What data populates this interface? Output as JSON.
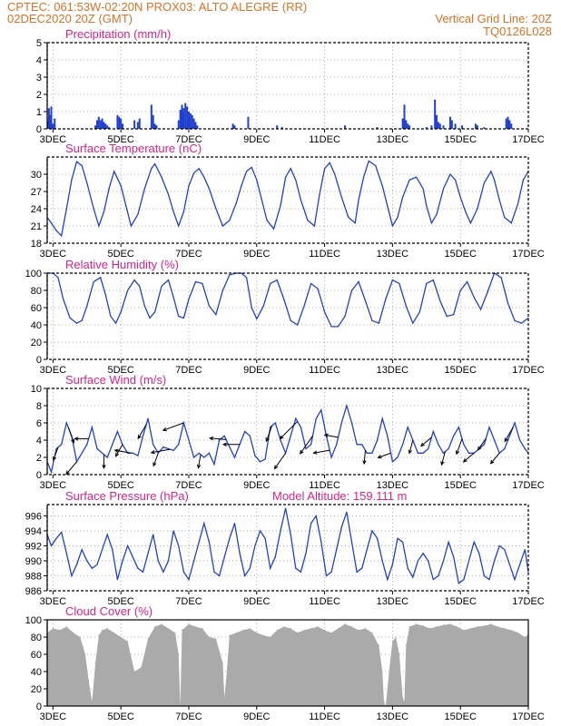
{
  "header": {
    "line1_left": "CPTEC:   061:53W-02:20N   PROX03: ALTO ALEGRE (RR)",
    "line2_left": "02DEC2020 20Z (GMT)",
    "line2_right": "Vertical Grid Line: 20Z",
    "line3_right": "TQ0126L028",
    "color": "#e07020"
  },
  "colors": {
    "title": "#e0208a",
    "line": "#2040d0",
    "bar": "#2040d0",
    "cloud": "#aaaaaa",
    "wind_arrow": "#000000"
  },
  "x_axis": {
    "range_days": [
      2.83,
      17.0
    ],
    "tick_labels": [
      "3DEC",
      "5DEC",
      "7DEC",
      "9DEC",
      "11DEC",
      "13DEC",
      "15DEC",
      "17DEC"
    ],
    "tick_days": [
      3,
      5,
      7,
      9,
      11,
      13,
      15,
      17
    ]
  },
  "chart_data": [
    {
      "type": "bar",
      "title": "Precipitation (mm/h)",
      "ylim": [
        0,
        5
      ],
      "yticks": [
        0,
        1,
        2,
        3,
        4,
        5
      ],
      "grid": true,
      "x": [
        2.85,
        2.88,
        2.92,
        2.95,
        3.0,
        3.05,
        4.25,
        4.3,
        4.35,
        4.4,
        4.45,
        4.5,
        4.55,
        4.6,
        4.65,
        4.9,
        4.95,
        5.0,
        5.05,
        5.4,
        5.5,
        5.55,
        5.9,
        5.95,
        6.0,
        6.05,
        6.7,
        6.75,
        6.8,
        6.85,
        6.9,
        6.95,
        7.0,
        7.05,
        7.1,
        7.15,
        7.2,
        7.25,
        8.3,
        8.35,
        8.75,
        9.6,
        9.75,
        11.6,
        12.55,
        13.3,
        13.35,
        13.4,
        13.45,
        13.5,
        14.0,
        14.15,
        14.25,
        14.3,
        14.35,
        14.4,
        14.5,
        14.7,
        14.75,
        14.85,
        15.05,
        15.45,
        15.5,
        15.7,
        16.35,
        16.4,
        16.45,
        16.5
      ],
      "values": [
        0.5,
        1.2,
        0.8,
        1.3,
        0.3,
        0.6,
        0.2,
        0.5,
        0.7,
        0.5,
        0.6,
        0.4,
        0.3,
        0.2,
        0.1,
        0.8,
        0.7,
        0.6,
        0.3,
        0.5,
        0.4,
        0.6,
        1.4,
        0.8,
        0.3,
        0.2,
        0.5,
        1.1,
        1.4,
        1.2,
        1.5,
        1.3,
        1.0,
        0.9,
        0.8,
        0.6,
        0.4,
        0.2,
        0.3,
        0.2,
        0.7,
        0.2,
        0.1,
        0.2,
        0.1,
        0.6,
        1.4,
        0.5,
        0.3,
        0.2,
        0.1,
        0.2,
        1.7,
        0.8,
        0.4,
        0.3,
        0.2,
        0.7,
        0.5,
        0.3,
        0.2,
        0.3,
        0.2,
        0.1,
        0.6,
        0.7,
        0.5,
        0.3
      ]
    },
    {
      "type": "line",
      "title": "Surface Temperature (nC)",
      "ylim": [
        18,
        33
      ],
      "yticks": [
        18,
        21,
        24,
        27,
        30
      ],
      "grid": true,
      "x": [
        2.83,
        2.95,
        3.1,
        3.25,
        3.4,
        3.55,
        3.7,
        3.85,
        4.0,
        4.2,
        4.35,
        4.5,
        4.65,
        4.8,
        5.0,
        5.15,
        5.3,
        5.5,
        5.7,
        5.9,
        6.0,
        6.2,
        6.4,
        6.55,
        6.7,
        6.85,
        7.0,
        7.15,
        7.3,
        7.45,
        7.6,
        7.8,
        8.0,
        8.2,
        8.4,
        8.55,
        8.7,
        8.85,
        9.0,
        9.15,
        9.3,
        9.5,
        9.7,
        9.85,
        10.0,
        10.15,
        10.3,
        10.5,
        10.7,
        10.85,
        11.0,
        11.15,
        11.3,
        11.5,
        11.7,
        11.9,
        12.0,
        12.15,
        12.3,
        12.5,
        12.7,
        12.85,
        13.0,
        13.15,
        13.3,
        13.5,
        13.7,
        13.9,
        14.0,
        14.15,
        14.3,
        14.5,
        14.7,
        14.85,
        15.0,
        15.15,
        15.3,
        15.5,
        15.7,
        15.9,
        16.0,
        16.15,
        16.3,
        16.5,
        16.7,
        16.85,
        17.0
      ],
      "values": [
        22.5,
        21.5,
        20.2,
        19.3,
        24.0,
        29.0,
        32.2,
        31.5,
        28.5,
        24.0,
        21.0,
        23.5,
        27.5,
        30.5,
        28.0,
        24.5,
        21.0,
        23.0,
        27.5,
        31.0,
        31.8,
        29.5,
        26.5,
        23.5,
        21.0,
        23.5,
        28.0,
        30.2,
        31.0,
        29.5,
        27.5,
        24.0,
        21.0,
        22.0,
        25.0,
        28.0,
        30.5,
        31.2,
        29.0,
        25.5,
        22.0,
        20.5,
        24.5,
        29.5,
        31.0,
        29.0,
        25.5,
        22.0,
        21.0,
        26.5,
        31.0,
        32.0,
        30.0,
        26.0,
        22.5,
        21.5,
        25.5,
        29.5,
        32.3,
        31.5,
        28.0,
        24.5,
        21.0,
        22.5,
        26.0,
        29.0,
        29.5,
        27.5,
        24.5,
        21.5,
        23.0,
        27.5,
        30.0,
        29.0,
        26.0,
        23.5,
        21.5,
        24.0,
        28.5,
        30.5,
        29.0,
        25.5,
        22.5,
        21.5,
        25.0,
        29.0,
        30.5
      ]
    },
    {
      "type": "line",
      "title": "Relative Humidity (%)",
      "ylim": [
        0,
        100
      ],
      "yticks": [
        0,
        20,
        40,
        60,
        80,
        100
      ],
      "grid": true,
      "x": [
        2.83,
        3.0,
        3.15,
        3.3,
        3.5,
        3.7,
        3.85,
        4.0,
        4.2,
        4.4,
        4.55,
        4.7,
        4.85,
        5.0,
        5.2,
        5.4,
        5.55,
        5.7,
        5.85,
        6.0,
        6.2,
        6.4,
        6.55,
        6.7,
        6.85,
        7.0,
        7.2,
        7.4,
        7.6,
        7.8,
        8.0,
        8.2,
        8.4,
        8.55,
        8.7,
        8.85,
        9.0,
        9.2,
        9.4,
        9.6,
        9.8,
        10.0,
        10.2,
        10.4,
        10.6,
        10.8,
        11.0,
        11.2,
        11.4,
        11.6,
        11.8,
        12.0,
        12.2,
        12.4,
        12.6,
        12.8,
        13.0,
        13.2,
        13.4,
        13.6,
        13.8,
        14.0,
        14.2,
        14.4,
        14.6,
        14.8,
        15.0,
        15.2,
        15.4,
        15.6,
        15.8,
        16.0,
        16.2,
        16.4,
        16.6,
        16.8,
        17.0
      ],
      "values": [
        100,
        100,
        95,
        70,
        48,
        42,
        45,
        62,
        90,
        95,
        75,
        50,
        42,
        55,
        80,
        92,
        85,
        62,
        48,
        55,
        85,
        92,
        72,
        50,
        48,
        70,
        90,
        88,
        62,
        52,
        80,
        98,
        100,
        100,
        95,
        60,
        47,
        62,
        88,
        92,
        70,
        45,
        40,
        62,
        88,
        82,
        55,
        38,
        38,
        50,
        80,
        90,
        68,
        45,
        42,
        70,
        92,
        88,
        62,
        42,
        55,
        88,
        92,
        68,
        50,
        52,
        80,
        90,
        72,
        58,
        78,
        100,
        95,
        65,
        45,
        42,
        48
      ]
    },
    {
      "type": "line",
      "title": "Surface Wind (m/s)",
      "ylim": [
        0,
        10
      ],
      "yticks": [
        0,
        2,
        4,
        6,
        8,
        10
      ],
      "grid": true,
      "note_arrows": "wind direction arrows drawn along series",
      "x": [
        2.83,
        2.95,
        3.1,
        3.25,
        3.4,
        3.55,
        3.7,
        3.85,
        4.0,
        4.15,
        4.3,
        4.45,
        4.6,
        4.75,
        4.9,
        5.05,
        5.2,
        5.35,
        5.5,
        5.65,
        5.8,
        5.95,
        6.1,
        6.25,
        6.4,
        6.55,
        6.7,
        6.85,
        7.0,
        7.15,
        7.3,
        7.45,
        7.6,
        7.75,
        7.9,
        8.05,
        8.2,
        8.35,
        8.5,
        8.65,
        8.8,
        8.95,
        9.1,
        9.25,
        9.4,
        9.55,
        9.7,
        9.85,
        10.0,
        10.15,
        10.3,
        10.45,
        10.6,
        10.75,
        10.9,
        11.05,
        11.2,
        11.35,
        11.5,
        11.65,
        11.8,
        11.95,
        12.1,
        12.25,
        12.4,
        12.55,
        12.7,
        12.85,
        13.0,
        13.15,
        13.3,
        13.45,
        13.6,
        13.75,
        13.9,
        14.05,
        14.2,
        14.35,
        14.5,
        14.65,
        14.8,
        14.95,
        15.1,
        15.25,
        15.4,
        15.55,
        15.7,
        15.85,
        16.0,
        16.15,
        16.3,
        16.45,
        16.6,
        16.75,
        16.9,
        17.0
      ],
      "values": [
        1.5,
        0.3,
        3.0,
        3.5,
        6.0,
        4.5,
        1.5,
        2.5,
        3.5,
        5.5,
        3.0,
        2.5,
        2.0,
        3.5,
        5.0,
        3.5,
        2.5,
        2.5,
        2.2,
        4.5,
        6.5,
        3.5,
        2.5,
        3.2,
        3.0,
        2.8,
        3.5,
        6.0,
        4.0,
        2.0,
        2.5,
        2.0,
        2.5,
        1.2,
        4.0,
        4.5,
        3.2,
        2.0,
        3.5,
        5.0,
        4.5,
        2.2,
        1.5,
        1.8,
        5.5,
        6.0,
        4.0,
        2.5,
        4.5,
        6.5,
        5.5,
        3.0,
        3.5,
        6.5,
        7.5,
        4.5,
        2.0,
        3.5,
        6.0,
        8.0,
        6.0,
        3.5,
        3.5,
        2.5,
        2.5,
        4.0,
        6.5,
        4.5,
        1.5,
        2.0,
        3.5,
        5.5,
        4.0,
        2.5,
        2.5,
        3.0,
        5.0,
        3.5,
        2.5,
        3.0,
        4.5,
        5.5,
        3.5,
        2.5,
        2.5,
        3.0,
        3.5,
        5.5,
        4.0,
        2.5,
        3.0,
        4.5,
        6.0,
        4.0,
        3.0,
        2.5
      ]
    },
    {
      "type": "line",
      "title": "Surface Pressure (hPa)",
      "subtitle": "Model Altitude: 159.111  m",
      "ylim": [
        986,
        997.5
      ],
      "yticks": [
        986,
        988,
        990,
        992,
        994,
        996
      ],
      "grid": true,
      "x": [
        2.83,
        2.95,
        3.1,
        3.25,
        3.4,
        3.55,
        3.7,
        3.85,
        4.0,
        4.15,
        4.3,
        4.45,
        4.6,
        4.75,
        4.9,
        5.05,
        5.2,
        5.35,
        5.5,
        5.65,
        5.8,
        5.95,
        6.1,
        6.25,
        6.4,
        6.55,
        6.7,
        6.85,
        7.0,
        7.15,
        7.3,
        7.45,
        7.6,
        7.75,
        7.9,
        8.05,
        8.2,
        8.35,
        8.5,
        8.65,
        8.8,
        8.95,
        9.1,
        9.25,
        9.4,
        9.55,
        9.7,
        9.85,
        10.0,
        10.15,
        10.3,
        10.45,
        10.6,
        10.75,
        10.9,
        11.05,
        11.2,
        11.35,
        11.5,
        11.65,
        11.8,
        11.95,
        12.1,
        12.25,
        12.4,
        12.55,
        12.7,
        12.85,
        13.0,
        13.15,
        13.3,
        13.45,
        13.6,
        13.75,
        13.9,
        14.05,
        14.2,
        14.35,
        14.5,
        14.65,
        14.8,
        14.95,
        15.1,
        15.25,
        15.4,
        15.55,
        15.7,
        15.85,
        16.0,
        16.15,
        16.3,
        16.45,
        16.6,
        16.75,
        16.9,
        17.0
      ],
      "values": [
        993.5,
        992.0,
        993.0,
        993.8,
        991.0,
        988.0,
        989.5,
        991.5,
        990.0,
        989.0,
        989.5,
        991.5,
        993.5,
        991.5,
        987.5,
        990.0,
        992.0,
        990.5,
        989.0,
        988.5,
        991.0,
        993.5,
        990.0,
        988.5,
        990.0,
        994.0,
        992.0,
        988.5,
        987.5,
        990.0,
        992.5,
        995.0,
        992.5,
        988.5,
        988.0,
        990.5,
        993.0,
        995.0,
        991.0,
        988.0,
        989.0,
        992.0,
        994.0,
        993.0,
        989.0,
        990.5,
        994.0,
        997.0,
        993.5,
        989.0,
        988.5,
        991.0,
        995.0,
        996.0,
        992.5,
        988.0,
        988.5,
        991.5,
        994.5,
        996.5,
        992.5,
        988.5,
        989.0,
        991.5,
        994.0,
        993.0,
        990.0,
        987.5,
        989.5,
        993.0,
        992.5,
        989.0,
        987.8,
        990.0,
        991.0,
        990.0,
        987.5,
        988.0,
        990.0,
        992.5,
        990.5,
        987.0,
        987.5,
        990.0,
        992.5,
        991.0,
        988.0,
        987.5,
        990.0,
        992.0,
        991.5,
        989.5,
        987.5,
        989.5,
        991.5,
        988.5
      ]
    },
    {
      "type": "area",
      "title": "Cloud Cover (%)",
      "ylim": [
        0,
        100
      ],
      "yticks": [
        0,
        20,
        40,
        60,
        80,
        100
      ],
      "grid": true,
      "x": [
        2.83,
        3.0,
        3.2,
        3.4,
        3.6,
        3.8,
        3.95,
        4.05,
        4.15,
        4.25,
        4.35,
        4.45,
        4.6,
        4.8,
        5.0,
        5.2,
        5.4,
        5.6,
        5.8,
        6.0,
        6.2,
        6.4,
        6.6,
        6.7,
        6.75,
        6.8,
        7.0,
        7.2,
        7.4,
        7.6,
        7.8,
        8.0,
        8.05,
        8.1,
        8.2,
        8.4,
        8.6,
        8.8,
        9.0,
        9.2,
        9.4,
        9.6,
        9.8,
        10.0,
        10.2,
        10.4,
        10.6,
        10.8,
        11.0,
        11.2,
        11.4,
        11.6,
        11.8,
        12.0,
        12.2,
        12.4,
        12.6,
        12.7,
        12.75,
        12.8,
        12.9,
        13.0,
        13.1,
        13.2,
        13.3,
        13.35,
        13.4,
        13.5,
        13.7,
        13.9,
        14.1,
        14.3,
        14.5,
        14.7,
        14.9,
        15.1,
        15.3,
        15.5,
        15.7,
        15.9,
        16.1,
        16.3,
        16.5,
        16.7,
        16.9,
        17.0
      ],
      "values": [
        85,
        90,
        88,
        92,
        85,
        80,
        60,
        30,
        5,
        50,
        82,
        88,
        90,
        85,
        80,
        75,
        40,
        45,
        78,
        92,
        95,
        90,
        85,
        60,
        0,
        88,
        95,
        92,
        90,
        80,
        78,
        50,
        10,
        30,
        82,
        85,
        88,
        90,
        85,
        82,
        80,
        88,
        92,
        90,
        85,
        88,
        90,
        92,
        88,
        85,
        90,
        95,
        92,
        88,
        90,
        85,
        70,
        40,
        5,
        0,
        40,
        75,
        80,
        60,
        10,
        5,
        70,
        92,
        95,
        93,
        90,
        92,
        94,
        95,
        92,
        88,
        90,
        92,
        93,
        95,
        92,
        90,
        88,
        85,
        80,
        83
      ]
    }
  ],
  "wind_arrows": [
    {
      "x": 3.15,
      "dir_deg": 200,
      "speed": 3
    },
    {
      "x": 3.45,
      "dir_deg": 160,
      "speed": 4
    },
    {
      "x": 3.7,
      "dir_deg": 220,
      "speed": 4
    },
    {
      "x": 4.05,
      "dir_deg": 270,
      "speed": 3
    },
    {
      "x": 4.5,
      "dir_deg": 180,
      "speed": 3
    },
    {
      "x": 5.05,
      "dir_deg": 210,
      "speed": 3
    },
    {
      "x": 5.3,
      "dir_deg": 280,
      "speed": 4
    },
    {
      "x": 5.75,
      "dir_deg": 210,
      "speed": 4
    },
    {
      "x": 6.1,
      "dir_deg": 200,
      "speed": 3
    },
    {
      "x": 6.45,
      "dir_deg": 260,
      "speed": 5
    },
    {
      "x": 6.85,
      "dir_deg": 250,
      "speed": 6
    },
    {
      "x": 7.35,
      "dir_deg": 190,
      "speed": 3
    },
    {
      "x": 8.1,
      "dir_deg": 275,
      "speed": 4
    },
    {
      "x": 8.5,
      "dir_deg": 270,
      "speed": 4
    },
    {
      "x": 9.45,
      "dir_deg": 200,
      "speed": 4
    },
    {
      "x": 9.85,
      "dir_deg": 215,
      "speed": 5
    },
    {
      "x": 10.2,
      "dir_deg": 225,
      "speed": 7
    },
    {
      "x": 10.65,
      "dir_deg": 215,
      "speed": 6
    },
    {
      "x": 11.15,
      "dir_deg": 260,
      "speed": 4
    },
    {
      "x": 11.4,
      "dir_deg": 280,
      "speed": 3
    },
    {
      "x": 12.2,
      "dir_deg": 185,
      "speed": 3
    },
    {
      "x": 12.95,
      "dir_deg": 250,
      "speed": 3
    },
    {
      "x": 13.6,
      "dir_deg": 195,
      "speed": 3
    },
    {
      "x": 14.15,
      "dir_deg": 230,
      "speed": 3
    },
    {
      "x": 14.55,
      "dir_deg": 195,
      "speed": 3
    },
    {
      "x": 15.05,
      "dir_deg": 200,
      "speed": 4
    },
    {
      "x": 15.4,
      "dir_deg": 230,
      "speed": 3
    },
    {
      "x": 15.75,
      "dir_deg": 215,
      "speed": 3
    },
    {
      "x": 16.15,
      "dir_deg": 220,
      "speed": 3
    },
    {
      "x": 16.55,
      "dir_deg": 210,
      "speed": 4
    }
  ]
}
